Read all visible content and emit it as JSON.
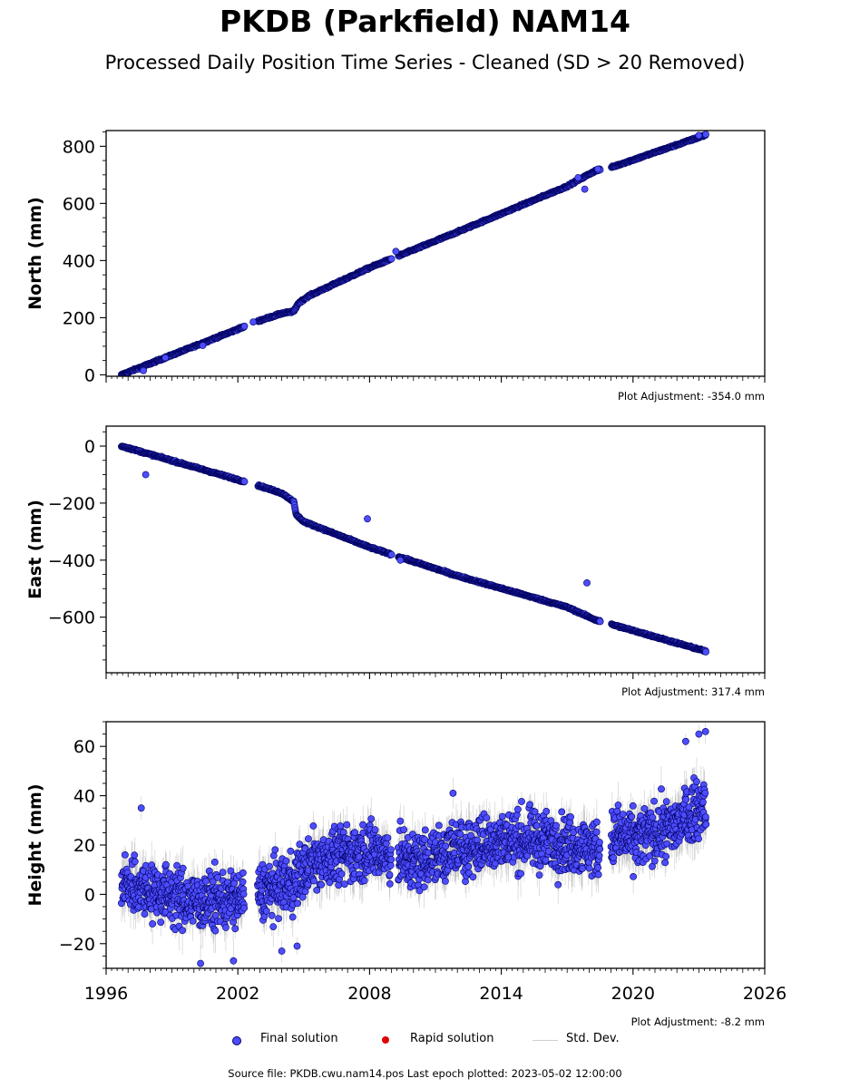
{
  "title": "PKDB (Parkfield) NAM14",
  "subtitle": "Processed Daily Position Time Series - Cleaned (SD > 20 Removed)",
  "legend": {
    "final": "Final solution",
    "rapid": "Rapid solution",
    "std": "Std. Dev."
  },
  "footer": "Source file: PKDB.cwu.nam14.pos  Last epoch plotted: 2023-05-02 12:00:00",
  "colors": {
    "final_fill": "#4d4dff",
    "final_edge": "#000060",
    "rapid": "#e00000",
    "std": "#b0b0b0"
  },
  "chart_data": [
    {
      "type": "scatter",
      "ylabel": "North (mm)",
      "adjustment": "Plot Adjustment: -354.0 mm",
      "xlim": [
        1996,
        2026
      ],
      "ylim": [
        -5,
        855
      ],
      "yticks": [
        0,
        200,
        400,
        600,
        800
      ],
      "ytick_labels": [
        "0",
        "200",
        "400",
        "600",
        "800"
      ],
      "noise": 2,
      "trend": [
        [
          1996.7,
          0
        ],
        [
          2003.0,
          190
        ],
        [
          2004.0,
          215
        ],
        [
          2004.55,
          222
        ],
        [
          2004.75,
          250
        ],
        [
          2005.2,
          275
        ],
        [
          2008.0,
          375
        ],
        [
          2012.0,
          500
        ],
        [
          2017.0,
          660
        ],
        [
          2018.3,
          715
        ],
        [
          2019.0,
          726
        ],
        [
          2023.33,
          840
        ]
      ],
      "outliers": [
        [
          1997.7,
          15
        ],
        [
          1998.7,
          60
        ],
        [
          2000.4,
          103
        ],
        [
          2002.7,
          185
        ],
        [
          2009.2,
          432
        ],
        [
          2017.8,
          650
        ],
        [
          2017.5,
          690
        ],
        [
          2018.4,
          720
        ],
        [
          2023.0,
          838
        ]
      ],
      "gaps": [
        [
          2002.3,
          2002.9
        ],
        [
          2009.0,
          2009.3
        ],
        [
          2018.5,
          2019.0
        ]
      ]
    },
    {
      "type": "scatter",
      "ylabel": "East (mm)",
      "adjustment": "Plot Adjustment: 317.4 mm",
      "xlim": [
        1996,
        2026
      ],
      "ylim": [
        -795,
        70
      ],
      "yticks": [
        -600,
        -400,
        -200,
        0
      ],
      "ytick_labels": [
        "−600",
        "−400",
        "−200",
        "0"
      ],
      "noise": 2,
      "trend": [
        [
          1996.7,
          0
        ],
        [
          2003.0,
          -140
        ],
        [
          2004.0,
          -165
        ],
        [
          2004.55,
          -195
        ],
        [
          2004.65,
          -240
        ],
        [
          2005.0,
          -265
        ],
        [
          2008.0,
          -355
        ],
        [
          2012.0,
          -455
        ],
        [
          2017.0,
          -565
        ],
        [
          2018.3,
          -610
        ],
        [
          2019.0,
          -625
        ],
        [
          2023.33,
          -720
        ]
      ],
      "outliers": [
        [
          1997.8,
          -100
        ],
        [
          2007.9,
          -255
        ],
        [
          2017.9,
          -480
        ],
        [
          2009.4,
          -400
        ],
        [
          2018.5,
          -615
        ]
      ],
      "gaps": [
        [
          2002.3,
          2002.9
        ],
        [
          2009.0,
          2009.3
        ],
        [
          2018.5,
          2019.0
        ]
      ]
    },
    {
      "type": "scatter",
      "ylabel": "Height (mm)",
      "adjustment": "Plot Adjustment: -8.2 mm",
      "xlim": [
        1996,
        2026
      ],
      "ylim": [
        -30,
        70
      ],
      "yticks": [
        -20,
        0,
        20,
        40,
        60
      ],
      "ytick_labels": [
        "−20",
        "0",
        "20",
        "40",
        "60"
      ],
      "xticks": [
        1996,
        2002,
        2008,
        2014,
        2020,
        2026
      ],
      "xtick_labels": [
        "1996",
        "2002",
        "2008",
        "2014",
        "2020",
        "2026"
      ],
      "noise": 8,
      "trend": [
        [
          1996.7,
          5
        ],
        [
          1998.0,
          2
        ],
        [
          2000.0,
          -3
        ],
        [
          2002.0,
          -2
        ],
        [
          2004.5,
          5
        ],
        [
          2005.5,
          14
        ],
        [
          2008.0,
          18
        ],
        [
          2010.0,
          13
        ],
        [
          2012.0,
          18
        ],
        [
          2014.0,
          22
        ],
        [
          2016.0,
          22
        ],
        [
          2018.5,
          18
        ],
        [
          2019.2,
          24
        ],
        [
          2020.0,
          22
        ],
        [
          2022.0,
          28
        ],
        [
          2023.33,
          38
        ]
      ],
      "outliers": [
        [
          1997.6,
          35
        ],
        [
          2011.8,
          41
        ],
        [
          2023.0,
          65
        ],
        [
          2023.3,
          66
        ],
        [
          2022.4,
          62
        ],
        [
          2004.7,
          -21
        ],
        [
          2004.0,
          -23
        ],
        [
          2001.8,
          -27
        ],
        [
          2000.3,
          -28
        ]
      ],
      "gaps": [
        [
          2002.3,
          2002.9
        ],
        [
          2009.0,
          2009.3
        ],
        [
          2018.5,
          2019.0
        ]
      ]
    }
  ]
}
